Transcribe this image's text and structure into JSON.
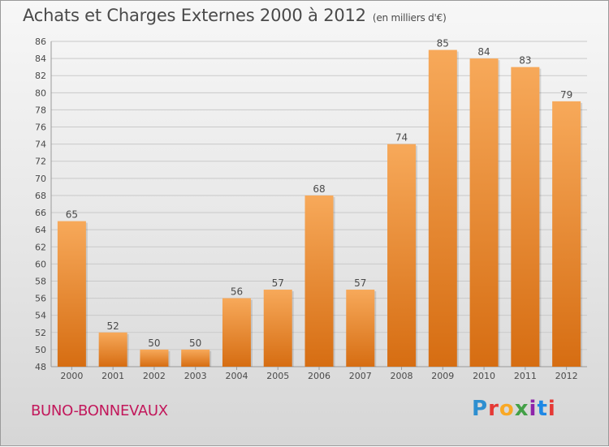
{
  "header": {
    "title": "Achats et Charges Externes 2000 à 2012",
    "subtitle": "(en milliers d'€)"
  },
  "footer": {
    "commune": "BUNO-BONNEVAUX",
    "logo_text": "Proxiti",
    "logo_letters": [
      {
        "ch": "P",
        "color": "#2e8fd0"
      },
      {
        "ch": "r",
        "color": "#e53935"
      },
      {
        "ch": "o",
        "color": "#f9a825"
      },
      {
        "ch": "x",
        "color": "#43a047"
      },
      {
        "ch": "i",
        "color": "#8e24aa"
      },
      {
        "ch": "t",
        "color": "#1e88e5"
      },
      {
        "ch": "i",
        "color": "#e53935"
      }
    ]
  },
  "colors": {
    "bar_top": "#f7a95a",
    "bar_bottom": "#d66d12",
    "grid": "#c9c9c9",
    "text": "#4a4a4a"
  },
  "chart_data": {
    "type": "bar",
    "title": "Achats et Charges Externes 2000 à 2012",
    "subtitle": "(en milliers d'€)",
    "categories": [
      "2000",
      "2001",
      "2002",
      "2003",
      "2004",
      "2005",
      "2006",
      "2007",
      "2008",
      "2009",
      "2010",
      "2011",
      "2012"
    ],
    "values": [
      65,
      52,
      50,
      50,
      56,
      57,
      68,
      57,
      74,
      85,
      84,
      83,
      79
    ],
    "ylim": [
      48,
      86
    ],
    "yticks": [
      48,
      50,
      52,
      54,
      56,
      58,
      60,
      62,
      64,
      66,
      68,
      70,
      72,
      74,
      76,
      78,
      80,
      82,
      84,
      86
    ],
    "grid": true,
    "data_labels": true,
    "xlabel": "",
    "ylabel": ""
  }
}
